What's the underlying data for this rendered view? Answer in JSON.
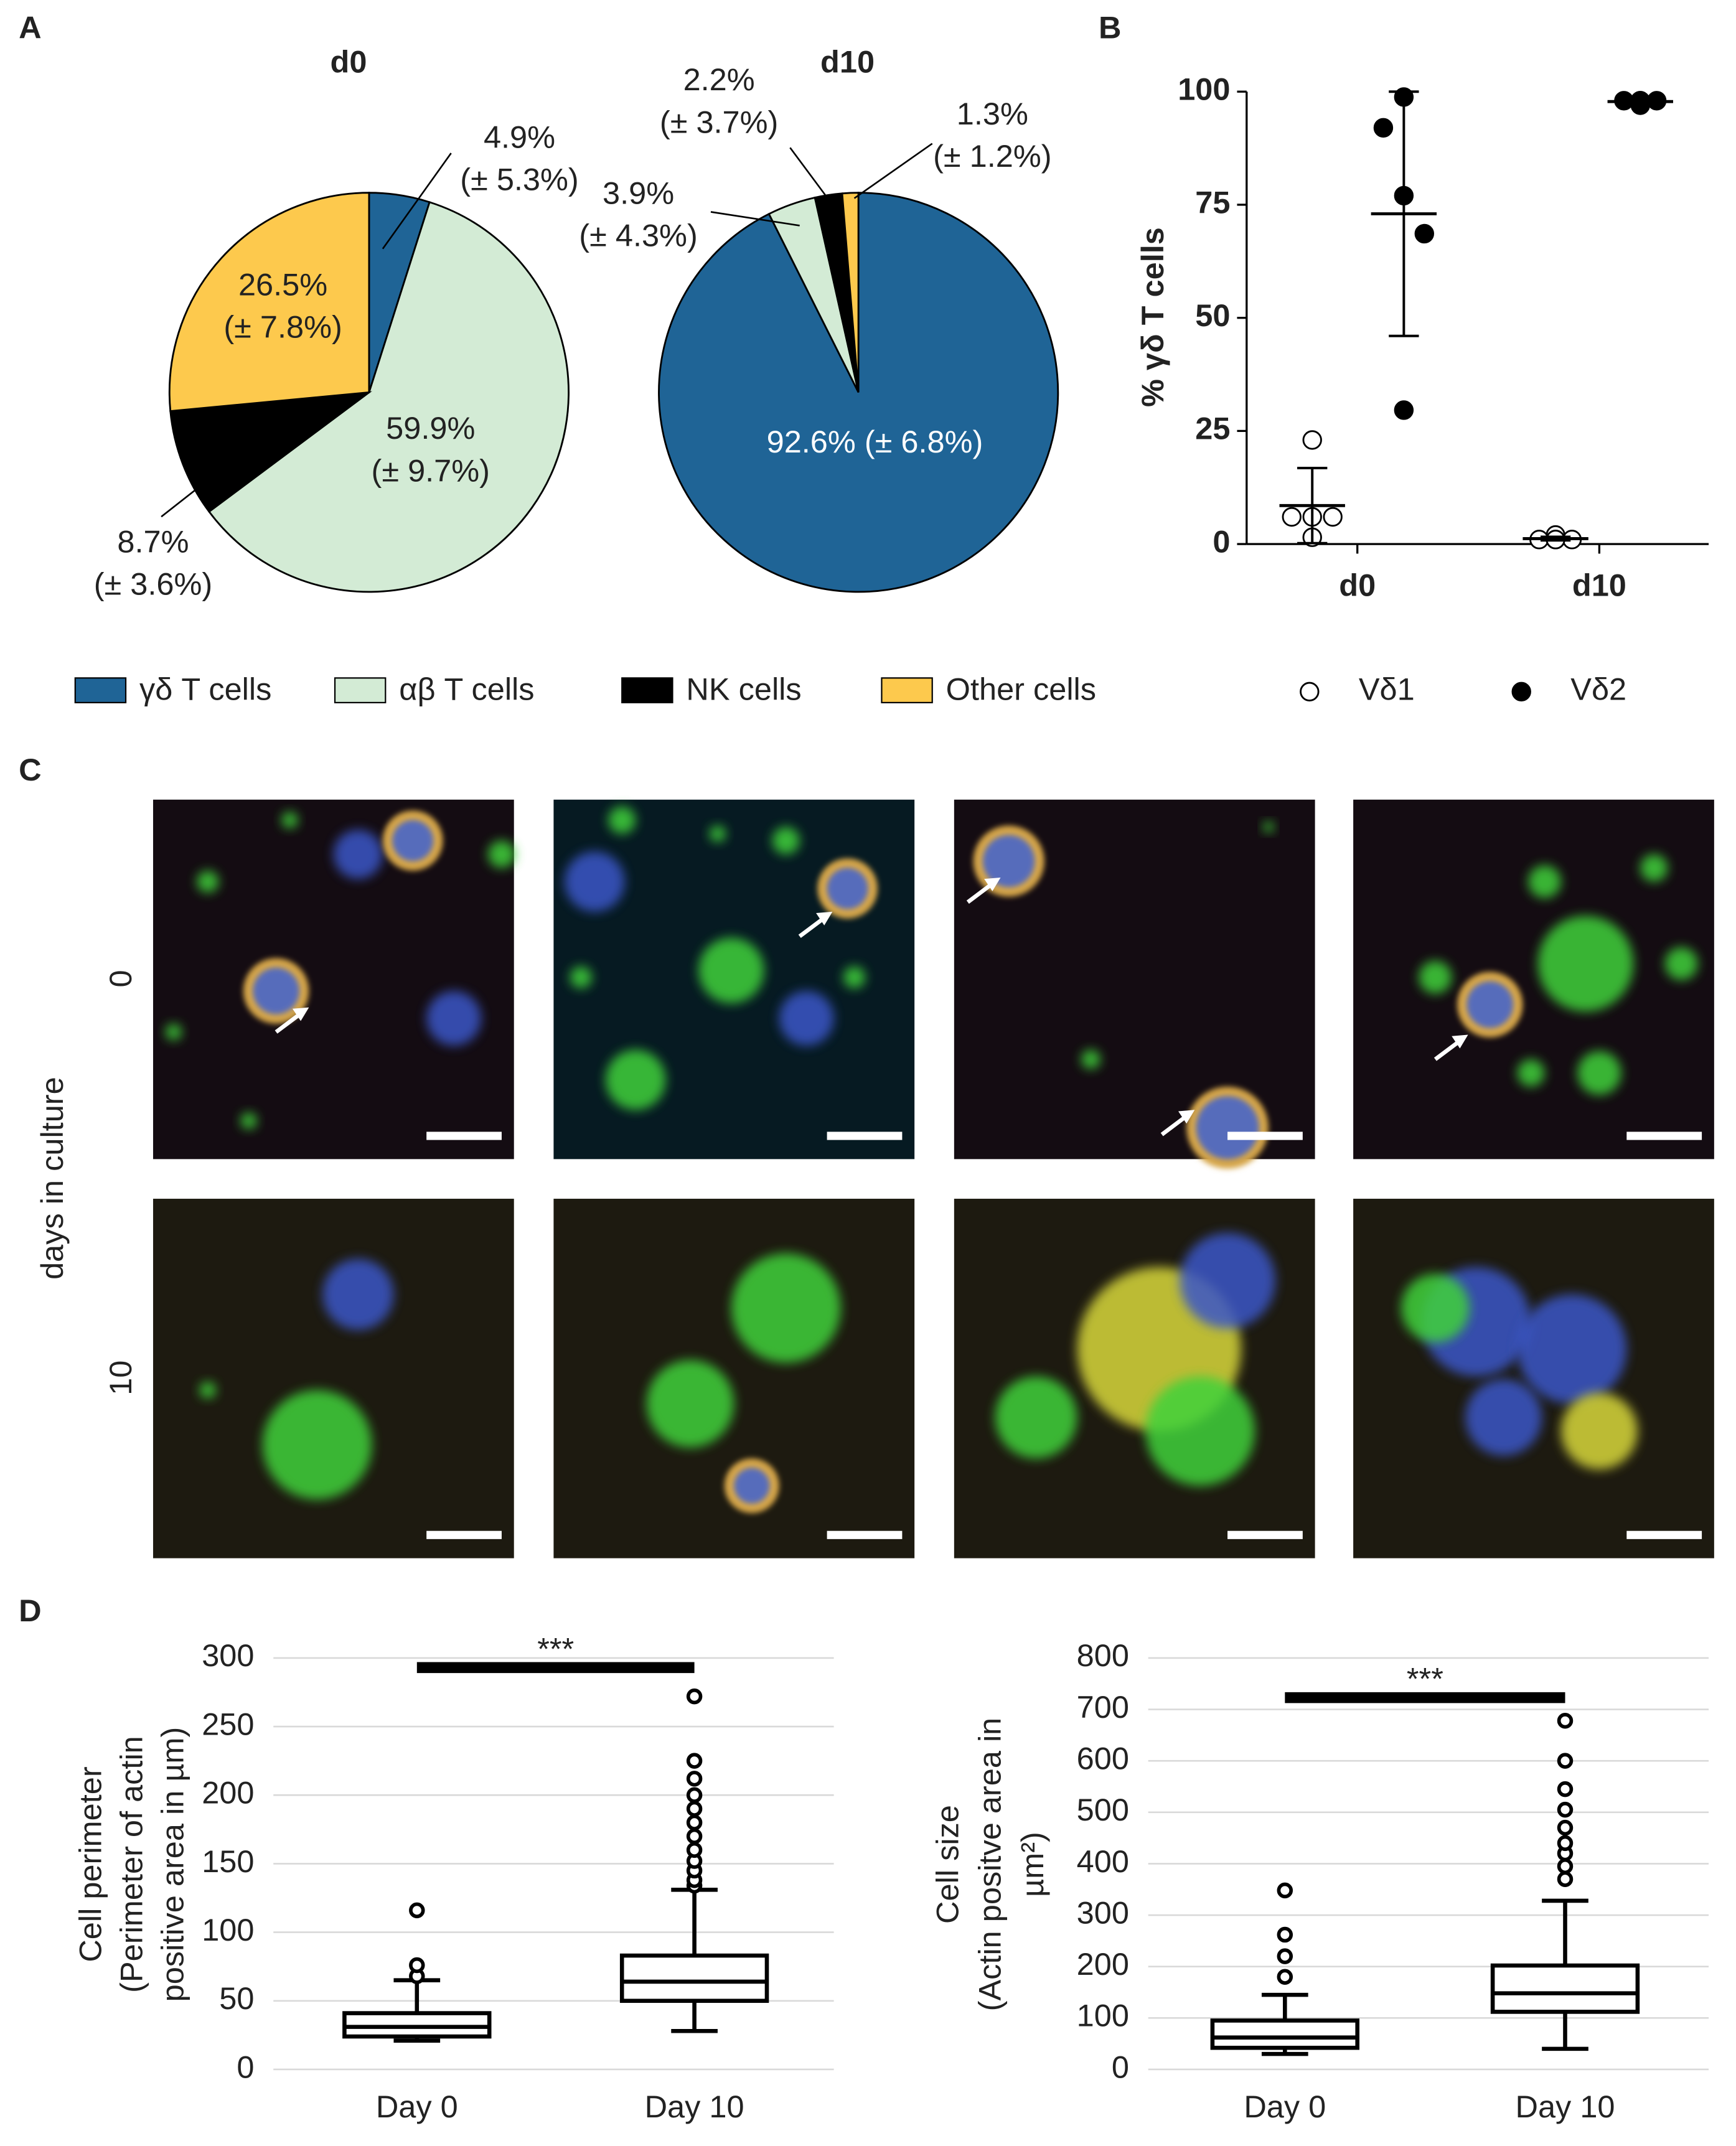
{
  "panel_labels": [
    "A",
    "B",
    "C",
    "D"
  ],
  "micrographs": {
    "axis_label": "days in culture",
    "rows": [
      "0",
      "10"
    ]
  },
  "chart_data": [
    {
      "type": "pie",
      "title": "d0",
      "categories": [
        "γδ T cells",
        "αβ T cells",
        "NK cells",
        "Other cells"
      ],
      "colors": [
        "#1f6496",
        "#d3ebd5",
        "#000000",
        "#fdc94d"
      ],
      "values": [
        4.9,
        59.9,
        8.7,
        26.5
      ],
      "value_labels": [
        "4.9%",
        "59.9%",
        "8.7%",
        "26.5%"
      ],
      "error_labels": [
        "(± 5.3%)",
        "(± 9.7%)",
        "(± 3.6%)",
        "(± 7.8%)"
      ],
      "legend": true
    },
    {
      "type": "pie",
      "title": "d10",
      "categories": [
        "γδ T cells",
        "αβ T cells",
        "NK cells",
        "Other cells"
      ],
      "colors": [
        "#1f6496",
        "#d3ebd5",
        "#000000",
        "#fdc94d"
      ],
      "values": [
        92.6,
        3.9,
        2.2,
        1.3
      ],
      "value_labels": [
        "92.6%",
        "3.9%",
        "2.2%",
        "1.3%"
      ],
      "error_labels": [
        "(± 6.8%)",
        "(± 4.3%)",
        "(± 3.7%)",
        "(± 1.2%)"
      ],
      "legend": false
    },
    {
      "type": "strip",
      "ylabel": "% γδ T cells",
      "categories": [
        "d0",
        "d10"
      ],
      "ylim": [
        0,
        100
      ],
      "yticks": [
        0,
        25,
        50,
        75,
        100
      ],
      "series": [
        {
          "name": "Vδ1",
          "marker": "open",
          "color": "#000000",
          "values": [
            [
              23,
              6,
              6,
              6,
              1.5
            ],
            [
              2,
              1,
              1,
              1,
              1
            ]
          ],
          "means": [
            8.5,
            1.2
          ],
          "errors": [
            8.3,
            0.4
          ]
        },
        {
          "name": "Vδ2",
          "marker": "filled",
          "color": "#000000",
          "values": [
            [
              98.8,
              92,
              77,
              68.6,
              29.6
            ],
            [
              98,
              98,
              98,
              98,
              97
            ]
          ],
          "means": [
            73,
            97.8
          ],
          "errors": [
            27,
            0.6
          ]
        }
      ]
    },
    {
      "type": "box",
      "ylabel": [
        "Cell perimeter",
        "(Perimeter of actin",
        "positive area in µm)"
      ],
      "categories": [
        "Day 0",
        "Day 10"
      ],
      "ylim": [
        0,
        300
      ],
      "yticks": [
        0,
        50,
        100,
        150,
        200,
        250,
        300
      ],
      "grid": true,
      "annotation": "***",
      "boxes": [
        {
          "whisker_low": 21,
          "q1": 24,
          "median": 31,
          "q3": 41,
          "whisker_high": 65,
          "outliers": [
            68,
            76,
            116
          ]
        },
        {
          "whisker_low": 28,
          "q1": 50,
          "median": 64,
          "q3": 83,
          "whisker_high": 131,
          "outliers": [
            134,
            138,
            145,
            152,
            160,
            170,
            180,
            190,
            200,
            212,
            225,
            272
          ]
        }
      ]
    },
    {
      "type": "box",
      "ylabel": [
        "Cell size",
        "(Actin positve area in",
        "µm²)"
      ],
      "categories": [
        "Day 0",
        "Day 10"
      ],
      "ylim": [
        0,
        800
      ],
      "yticks": [
        0,
        100,
        200,
        300,
        400,
        500,
        600,
        700,
        800
      ],
      "grid": true,
      "annotation": "***",
      "boxes": [
        {
          "whisker_low": 30,
          "q1": 42,
          "median": 62,
          "q3": 95,
          "whisker_high": 145,
          "outliers": [
            180,
            220,
            262,
            348
          ]
        },
        {
          "whisker_low": 40,
          "q1": 112,
          "median": 148,
          "q3": 202,
          "whisker_high": 328,
          "outliers": [
            370,
            395,
            420,
            440,
            470,
            505,
            545,
            600,
            678
          ]
        }
      ]
    }
  ]
}
